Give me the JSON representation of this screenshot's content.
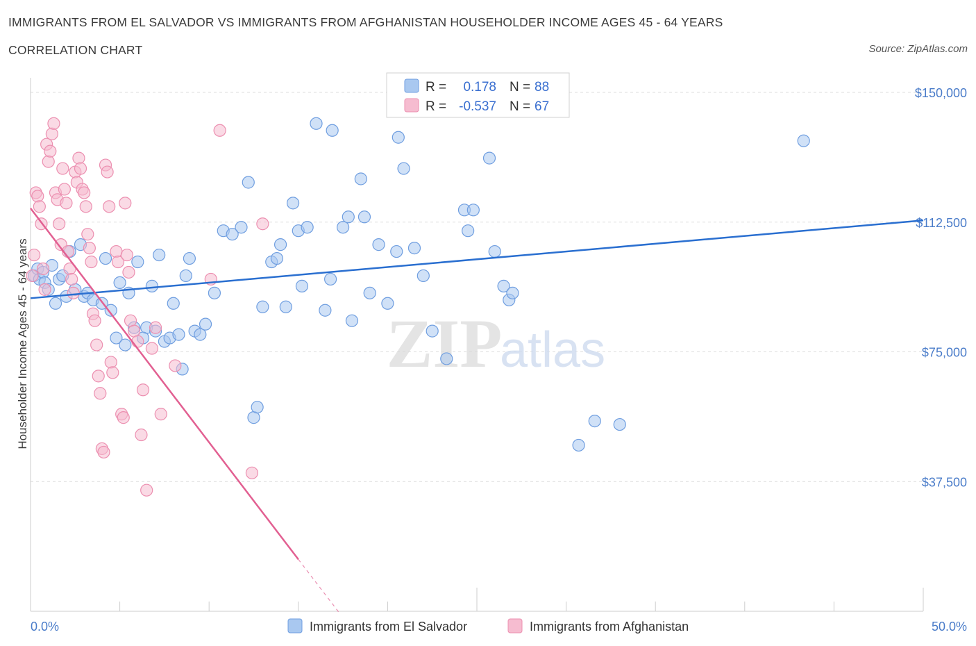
{
  "header": {
    "title": "IMMIGRANTS FROM EL SALVADOR VS IMMIGRANTS FROM AFGHANISTAN HOUSEHOLDER INCOME AGES 45 - 64 YEARS",
    "subtitle": "CORRELATION CHART",
    "source": "Source: ZipAtlas.com"
  },
  "watermark": {
    "zip": "ZIP",
    "atlas": "atlas"
  },
  "legend_box": {
    "rows": [
      {
        "r_label": "R =",
        "r_value": "0.178",
        "n_label": "N =",
        "n_value": "88"
      },
      {
        "r_label": "R =",
        "r_value": "-0.537",
        "n_label": "N =",
        "n_value": "67"
      }
    ]
  },
  "colors": {
    "series1_fill": "#a9c8f0",
    "series1_stroke": "#6f9ee0",
    "series1_line": "#2a6fd0",
    "series2_fill": "#f6bcd0",
    "series2_stroke": "#ec8fb0",
    "series2_line": "#e26092",
    "grid": "#dddddd",
    "axis_tick_text": "#4a7cc9"
  },
  "chart_data": {
    "type": "scatter",
    "title": "IMMIGRANTS FROM EL SALVADOR VS IMMIGRANTS FROM AFGHANISTAN HOUSEHOLDER INCOME AGES 45 - 64 YEARS",
    "xlabel": "",
    "ylabel": "Householder Income Ages 45 - 64 years",
    "xlim": [
      0,
      50
    ],
    "ylim": [
      0,
      150000
    ],
    "x_tick_labels": [
      "0.0%",
      "50.0%"
    ],
    "y_ticks": [
      37500,
      75000,
      112500,
      150000
    ],
    "y_tick_labels": [
      "$37,500",
      "$75,000",
      "$112,500",
      "$150,000"
    ],
    "grid": true,
    "legend_position": "bottom-center",
    "series": [
      {
        "name": "Immigrants from El Salvador",
        "R": 0.178,
        "N": 88,
        "trend": {
          "x": [
            0,
            50
          ],
          "y": [
            90500,
            113000
          ]
        },
        "points": [
          [
            0.2,
            97000
          ],
          [
            0.4,
            99000
          ],
          [
            0.5,
            96000
          ],
          [
            0.7,
            98000
          ],
          [
            0.8,
            95000
          ],
          [
            1.0,
            93000
          ],
          [
            1.2,
            100000
          ],
          [
            1.4,
            89000
          ],
          [
            1.6,
            96000
          ],
          [
            1.8,
            97000
          ],
          [
            2.0,
            91000
          ],
          [
            2.2,
            104000
          ],
          [
            2.5,
            93000
          ],
          [
            2.8,
            106000
          ],
          [
            3.0,
            91000
          ],
          [
            3.2,
            92000
          ],
          [
            3.5,
            90000
          ],
          [
            4.0,
            89000
          ],
          [
            4.2,
            102000
          ],
          [
            4.5,
            87000
          ],
          [
            4.8,
            79000
          ],
          [
            5.0,
            95000
          ],
          [
            5.3,
            77000
          ],
          [
            5.5,
            92000
          ],
          [
            5.8,
            82000
          ],
          [
            6.0,
            101000
          ],
          [
            6.5,
            82000
          ],
          [
            6.3,
            79000
          ],
          [
            6.8,
            94000
          ],
          [
            7.0,
            81000
          ],
          [
            7.2,
            103000
          ],
          [
            7.5,
            78000
          ],
          [
            7.8,
            79000
          ],
          [
            8.0,
            89000
          ],
          [
            8.3,
            80000
          ],
          [
            8.5,
            70000
          ],
          [
            8.7,
            97000
          ],
          [
            8.9,
            102000
          ],
          [
            9.2,
            81000
          ],
          [
            9.5,
            80000
          ],
          [
            9.8,
            83000
          ],
          [
            10.3,
            92000
          ],
          [
            10.8,
            110000
          ],
          [
            11.3,
            109000
          ],
          [
            11.8,
            111000
          ],
          [
            12.2,
            124000
          ],
          [
            12.5,
            56000
          ],
          [
            12.7,
            59000
          ],
          [
            13.0,
            88000
          ],
          [
            13.5,
            101000
          ],
          [
            13.8,
            102000
          ],
          [
            14.0,
            106000
          ],
          [
            14.3,
            88000
          ],
          [
            14.7,
            118000
          ],
          [
            15.0,
            110000
          ],
          [
            15.2,
            94000
          ],
          [
            15.5,
            111000
          ],
          [
            16.0,
            141000
          ],
          [
            16.5,
            87000
          ],
          [
            16.8,
            96000
          ],
          [
            16.9,
            139000
          ],
          [
            17.5,
            111000
          ],
          [
            17.8,
            114000
          ],
          [
            18.0,
            84000
          ],
          [
            18.5,
            125000
          ],
          [
            18.7,
            114000
          ],
          [
            19.0,
            92000
          ],
          [
            19.5,
            106000
          ],
          [
            20.0,
            89000
          ],
          [
            20.5,
            104000
          ],
          [
            20.6,
            137000
          ],
          [
            20.9,
            128000
          ],
          [
            21.5,
            105000
          ],
          [
            22.0,
            97000
          ],
          [
            22.5,
            81000
          ],
          [
            23.3,
            73000
          ],
          [
            24.3,
            116000
          ],
          [
            24.5,
            110000
          ],
          [
            24.8,
            116000
          ],
          [
            25.7,
            131000
          ],
          [
            26.0,
            104000
          ],
          [
            26.5,
            94000
          ],
          [
            26.8,
            90000
          ],
          [
            27.0,
            92000
          ],
          [
            30.7,
            48000
          ],
          [
            31.6,
            55000
          ],
          [
            33.0,
            54000
          ],
          [
            43.3,
            136000
          ]
        ]
      },
      {
        "name": "Immigrants from Afghanistan",
        "R": -0.537,
        "N": 67,
        "trend": {
          "x": [
            0,
            15
          ],
          "y": [
            116500,
            15000
          ]
        },
        "trend_dashed": {
          "x": [
            15,
            17.3
          ],
          "y": [
            15000,
            -500
          ]
        },
        "points": [
          [
            0.1,
            97000
          ],
          [
            0.2,
            103000
          ],
          [
            0.3,
            121000
          ],
          [
            0.4,
            120000
          ],
          [
            0.5,
            117000
          ],
          [
            0.6,
            112000
          ],
          [
            0.7,
            99000
          ],
          [
            0.8,
            93000
          ],
          [
            0.9,
            135000
          ],
          [
            1.0,
            130000
          ],
          [
            1.1,
            133000
          ],
          [
            1.2,
            138000
          ],
          [
            1.3,
            141000
          ],
          [
            1.4,
            121000
          ],
          [
            1.5,
            119000
          ],
          [
            1.6,
            112000
          ],
          [
            1.7,
            106000
          ],
          [
            1.8,
            128000
          ],
          [
            1.9,
            122000
          ],
          [
            2.0,
            118000
          ],
          [
            2.1,
            104000
          ],
          [
            2.2,
            99000
          ],
          [
            2.3,
            96000
          ],
          [
            2.4,
            92000
          ],
          [
            2.5,
            127000
          ],
          [
            2.6,
            124000
          ],
          [
            2.7,
            131000
          ],
          [
            2.8,
            128000
          ],
          [
            2.9,
            122000
          ],
          [
            3.0,
            121000
          ],
          [
            3.1,
            117000
          ],
          [
            3.2,
            109000
          ],
          [
            3.3,
            105000
          ],
          [
            3.4,
            101000
          ],
          [
            3.5,
            86000
          ],
          [
            3.6,
            84000
          ],
          [
            3.7,
            77000
          ],
          [
            3.8,
            68000
          ],
          [
            3.9,
            63000
          ],
          [
            4.0,
            47000
          ],
          [
            4.1,
            46000
          ],
          [
            4.2,
            129000
          ],
          [
            4.3,
            127000
          ],
          [
            4.4,
            117000
          ],
          [
            4.5,
            72000
          ],
          [
            4.6,
            69000
          ],
          [
            4.8,
            104000
          ],
          [
            4.9,
            101000
          ],
          [
            5.1,
            57000
          ],
          [
            5.2,
            56000
          ],
          [
            5.3,
            118000
          ],
          [
            5.4,
            103000
          ],
          [
            5.5,
            98000
          ],
          [
            5.6,
            84000
          ],
          [
            5.8,
            81000
          ],
          [
            6.0,
            78000
          ],
          [
            6.2,
            51000
          ],
          [
            6.3,
            64000
          ],
          [
            6.5,
            35000
          ],
          [
            6.8,
            76000
          ],
          [
            7.0,
            82000
          ],
          [
            7.3,
            57000
          ],
          [
            8.1,
            71000
          ],
          [
            10.6,
            139000
          ],
          [
            10.1,
            96000
          ],
          [
            12.4,
            40000
          ],
          [
            13.0,
            112000
          ]
        ]
      }
    ]
  }
}
